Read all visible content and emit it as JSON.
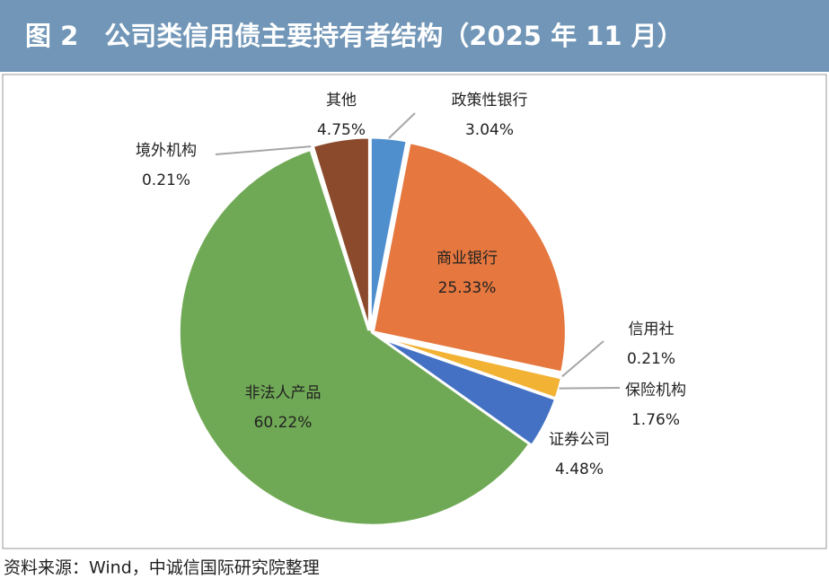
{
  "chart_data": {
    "type": "pie",
    "title": "图 2　公司类信用债主要持有者结构（2025 年 11 月）",
    "categories": [
      "政策性银行",
      "商业银行",
      "信用社",
      "保险机构",
      "证券公司",
      "非法人产品",
      "境外机构",
      "其他"
    ],
    "values": [
      3.04,
      25.33,
      0.21,
      1.76,
      4.48,
      60.22,
      0.21,
      4.75
    ],
    "value_labels": [
      "3.04%",
      "25.33%",
      "0.21%",
      "1.76%",
      "4.48%",
      "60.22%",
      "0.21%",
      "4.75%"
    ],
    "colors": [
      "#4f8fcd",
      "#e5773f",
      "#a5a5a5",
      "#f2b233",
      "#4471c3",
      "#70a955",
      "#7f7f7f",
      "#8b4a2b"
    ]
  },
  "source": "资料来源：Wind，中诚信国际研究院整理"
}
